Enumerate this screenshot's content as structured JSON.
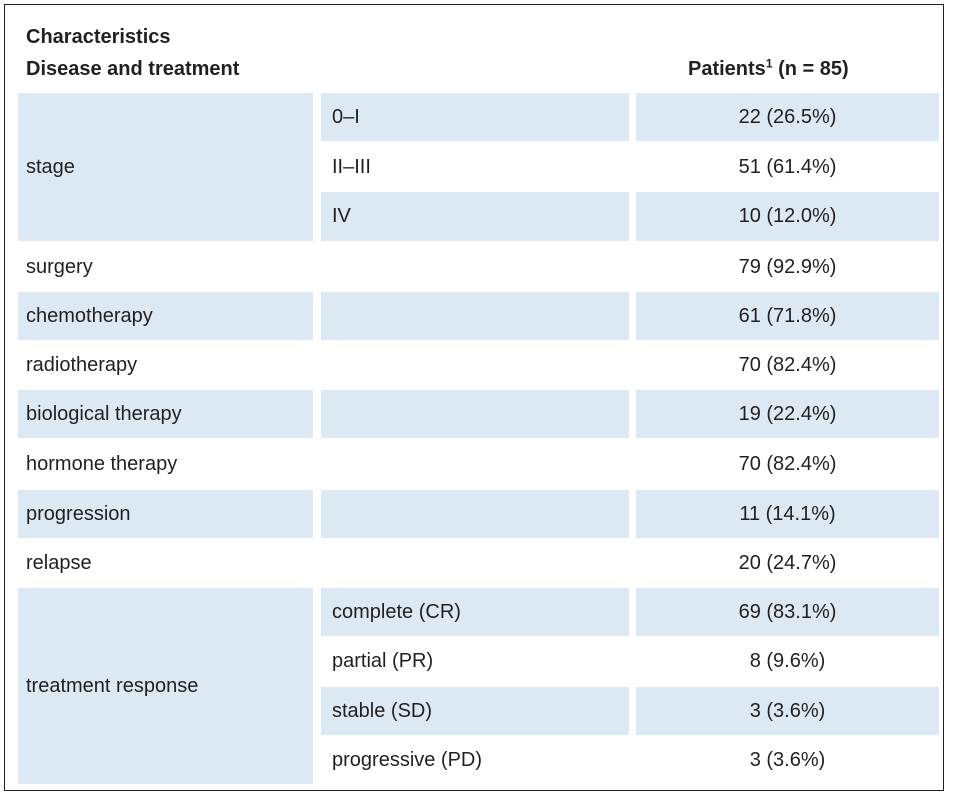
{
  "header": {
    "line1": "Characteristics",
    "line2": "Disease and treatment",
    "patients_label": "Patients",
    "patients_sup": "1",
    "patients_n": "(n = 85)"
  },
  "rows": [
    {
      "characteristic": "stage",
      "sub": [
        "0–I",
        "II–III",
        "IV"
      ],
      "values": [
        "22 (26.5%)",
        "51 (61.4%)",
        "10 (12.0%)"
      ]
    },
    {
      "characteristic": "surgery",
      "value": "79 (92.9%)"
    },
    {
      "characteristic": "chemotherapy",
      "value": "61 (71.8%)"
    },
    {
      "characteristic": "radiotherapy",
      "value": "70 (82.4%)"
    },
    {
      "characteristic": "biological therapy",
      "value": "19 (22.4%)"
    },
    {
      "characteristic": "hormone therapy",
      "value": "70 (82.4%)"
    },
    {
      "characteristic": "progression",
      "value": "11 (14.1%)"
    },
    {
      "characteristic": "relapse",
      "value": "20 (24.7%)"
    },
    {
      "characteristic": "treatment response",
      "sub": [
        "complete (CR)",
        "partial (PR)",
        "stable (SD)",
        "progressive (PD)"
      ],
      "values": [
        "69 (83.1%)",
        "8 (9.6%)",
        "3 (3.6%)",
        "3 (3.6%)"
      ]
    }
  ]
}
